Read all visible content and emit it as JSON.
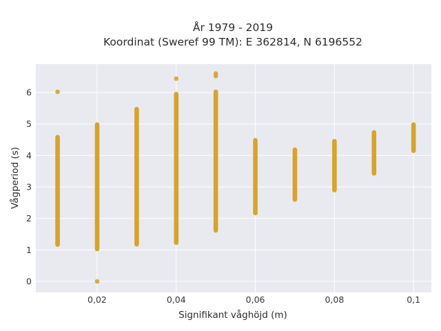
{
  "chart_data": {
    "type": "scatter",
    "title_line1": "År 1979 - 2019",
    "title_line2": "Koordinat (Sweref 99 TM): E 362814, N 6196552",
    "xlabel": "Signifikant våghöjd (m)",
    "ylabel": "Vågperiod (s)",
    "xlim": [
      0.0045,
      0.1045
    ],
    "ylim": [
      -0.35,
      6.9
    ],
    "x_ticks": [
      {
        "value": 0.02,
        "label": "0,02"
      },
      {
        "value": 0.04,
        "label": "0,04"
      },
      {
        "value": 0.06,
        "label": "0,06"
      },
      {
        "value": 0.08,
        "label": "0,08"
      },
      {
        "value": 0.1,
        "label": "0,1"
      }
    ],
    "y_ticks": [
      {
        "value": 0,
        "label": "0"
      },
      {
        "value": 1,
        "label": "1"
      },
      {
        "value": 2,
        "label": "2"
      },
      {
        "value": 3,
        "label": "3"
      },
      {
        "value": 4,
        "label": "4"
      },
      {
        "value": 5,
        "label": "5"
      },
      {
        "value": 6,
        "label": "6"
      }
    ],
    "grid": true,
    "marker_color": "#D4A020",
    "plot_bg": "#E9E9F0",
    "grid_color": "#FFFFFF",
    "columns": [
      {
        "x": 0.01,
        "ranges": [
          [
            1.17,
            4.58
          ]
        ],
        "outliers": [
          6.02
        ]
      },
      {
        "x": 0.02,
        "ranges": [
          [
            1.03,
            4.98
          ]
        ],
        "outliers": [
          0.0
        ]
      },
      {
        "x": 0.03,
        "ranges": [
          [
            1.18,
            5.47
          ]
        ],
        "outliers": []
      },
      {
        "x": 0.04,
        "ranges": [
          [
            1.23,
            5.95
          ]
        ],
        "outliers": [
          6.44
        ]
      },
      {
        "x": 0.05,
        "ranges": [
          [
            1.62,
            6.02
          ]
        ],
        "outliers": [
          6.52,
          6.6
        ]
      },
      {
        "x": 0.06,
        "ranges": [
          [
            2.17,
            4.48
          ]
        ],
        "outliers": []
      },
      {
        "x": 0.07,
        "ranges": [
          [
            2.6,
            4.18
          ]
        ],
        "outliers": []
      },
      {
        "x": 0.08,
        "ranges": [
          [
            2.9,
            4.45
          ]
        ],
        "outliers": []
      },
      {
        "x": 0.09,
        "ranges": [
          [
            3.43,
            4.73
          ]
        ],
        "outliers": []
      },
      {
        "x": 0.1,
        "ranges": [
          [
            4.15,
            4.98
          ]
        ],
        "outliers": []
      }
    ]
  }
}
